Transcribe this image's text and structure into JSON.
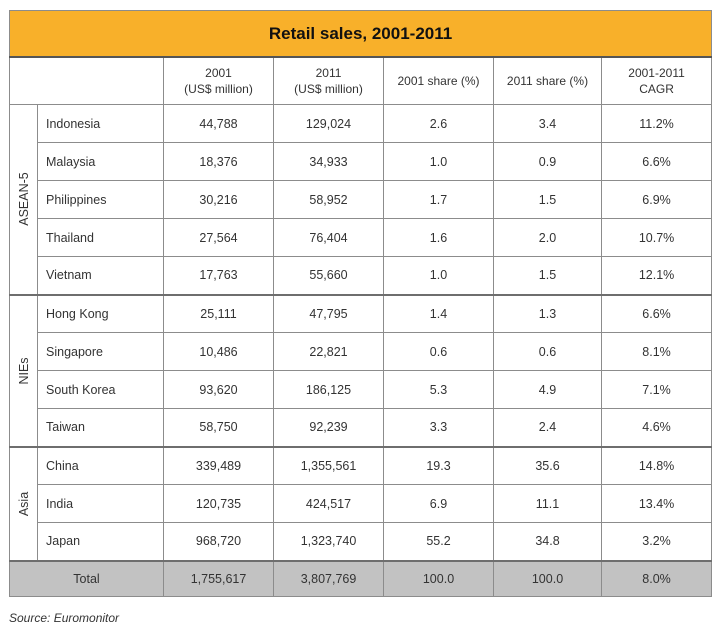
{
  "title": "Retail sales, 2001-2011",
  "headers": [
    {
      "line1": "",
      "line2": ""
    },
    {
      "line1": "2001",
      "line2": "(US$ million)"
    },
    {
      "line1": "2011",
      "line2": "(US$ million)"
    },
    {
      "line1": "2001 share (%)",
      "line2": ""
    },
    {
      "line1": "2011 share (%)",
      "line2": ""
    },
    {
      "line1": "2001-2011",
      "line2": "CAGR"
    }
  ],
  "groups": [
    {
      "label": "ASEAN-5",
      "rows": [
        {
          "country": "Indonesia",
          "v2001": "44,788",
          "v2011": "129,024",
          "s2001": "2.6",
          "s2011": "3.4",
          "cagr": "11.2%"
        },
        {
          "country": "Malaysia",
          "v2001": "18,376",
          "v2011": "34,933",
          "s2001": "1.0",
          "s2011": "0.9",
          "cagr": "6.6%"
        },
        {
          "country": "Philippines",
          "v2001": "30,216",
          "v2011": "58,952",
          "s2001": "1.7",
          "s2011": "1.5",
          "cagr": "6.9%"
        },
        {
          "country": "Thailand",
          "v2001": "27,564",
          "v2011": "76,404",
          "s2001": "1.6",
          "s2011": "2.0",
          "cagr": "10.7%"
        },
        {
          "country": "Vietnam",
          "v2001": "17,763",
          "v2011": "55,660",
          "s2001": "1.0",
          "s2011": "1.5",
          "cagr": "12.1%"
        }
      ]
    },
    {
      "label": "NIEs",
      "rows": [
        {
          "country": "Hong Kong",
          "v2001": "25,111",
          "v2011": "47,795",
          "s2001": "1.4",
          "s2011": "1.3",
          "cagr": "6.6%"
        },
        {
          "country": "Singapore",
          "v2001": "10,486",
          "v2011": "22,821",
          "s2001": "0.6",
          "s2011": "0.6",
          "cagr": "8.1%"
        },
        {
          "country": "South Korea",
          "v2001": "93,620",
          "v2011": "186,125",
          "s2001": "5.3",
          "s2011": "4.9",
          "cagr": "7.1%"
        },
        {
          "country": "Taiwan",
          "v2001": "58,750",
          "v2011": "92,239",
          "s2001": "3.3",
          "s2011": "2.4",
          "cagr": "4.6%"
        }
      ]
    },
    {
      "label": "Asia",
      "rows": [
        {
          "country": "China",
          "v2001": "339,489",
          "v2011": "1,355,561",
          "s2001": "19.3",
          "s2011": "35.6",
          "cagr": "14.8%"
        },
        {
          "country": "India",
          "v2001": "120,735",
          "v2011": "424,517",
          "s2001": "6.9",
          "s2011": "11.1",
          "cagr": "13.4%"
        },
        {
          "country": "Japan",
          "v2001": "968,720",
          "v2011": "1,323,740",
          "s2001": "55.2",
          "s2011": "34.8",
          "cagr": "3.2%"
        }
      ]
    }
  ],
  "total": {
    "label": "Total",
    "v2001": "1,755,617",
    "v2011": "3,807,769",
    "s2001": "100.0",
    "s2011": "100.0",
    "cagr": "8.0%"
  },
  "source": "Source: Euromonitor",
  "colors": {
    "title_bg": "#f8b02a",
    "total_bg": "#c2c2c2",
    "border": "#8c8c8c"
  }
}
